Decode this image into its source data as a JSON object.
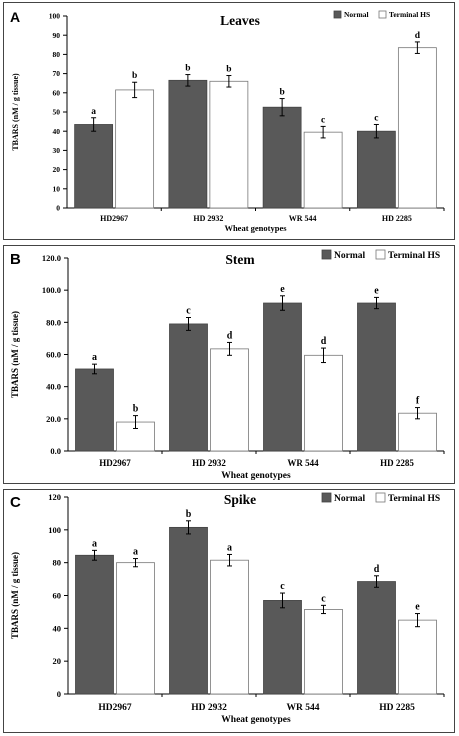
{
  "chart_data": [
    {
      "panel_letter": "A",
      "type": "bar",
      "title": "Leaves",
      "xlabel": "Wheat genotypes",
      "ylabel": "TBARS (nM / g tissue)",
      "categories": [
        "HD2967",
        "HD 2932",
        "WR 544",
        "HD 2285"
      ],
      "ylim": [
        0,
        100
      ],
      "yticks": [
        "0",
        "10",
        "20",
        "30",
        "40",
        "50",
        "60",
        "70",
        "80",
        "90",
        "100"
      ],
      "legend_position": "top-right",
      "series": [
        {
          "name": "Normal",
          "color": "#595959",
          "values": [
            43.5,
            66.5,
            52.5,
            40
          ],
          "errors": [
            3.5,
            3,
            4.5,
            3.5
          ],
          "letters": [
            "a",
            "b",
            "b",
            "c"
          ]
        },
        {
          "name": "Terminal HS",
          "color": "#ffffff",
          "values": [
            61.5,
            66,
            39.5,
            83.5
          ],
          "errors": [
            4,
            3,
            3,
            3
          ],
          "letters": [
            "b",
            "b",
            "c",
            "d"
          ]
        }
      ]
    },
    {
      "panel_letter": "B",
      "type": "bar",
      "title": "Stem",
      "xlabel": "Wheat genotypes",
      "ylabel": "TBARS (nM / g tissue)",
      "categories": [
        "HD2967",
        "HD 2932",
        "WR 544",
        "HD 2285"
      ],
      "ylim": [
        0,
        120
      ],
      "yticks": [
        "0.0",
        "20.0",
        "40.0",
        "60.0",
        "80.0",
        "100.0",
        "120.0"
      ],
      "legend_position": "top-right",
      "series": [
        {
          "name": "Normal",
          "color": "#595959",
          "values": [
            51,
            79,
            92,
            92
          ],
          "errors": [
            3,
            4,
            4.5,
            3.5
          ],
          "letters": [
            "a",
            "c",
            "e",
            "e"
          ]
        },
        {
          "name": "Terminal HS",
          "color": "#ffffff",
          "values": [
            18,
            63.5,
            59.5,
            23.5
          ],
          "errors": [
            4,
            4,
            4.5,
            3.5
          ],
          "letters": [
            "b",
            "d",
            "d",
            "f"
          ]
        }
      ]
    },
    {
      "panel_letter": "C",
      "type": "bar",
      "title": "Spike",
      "xlabel": "Wheat genotypes",
      "ylabel": "TBARS (nM / g tissue)",
      "categories": [
        "HD2967",
        "HD 2932",
        "WR 544",
        "HD 2285"
      ],
      "ylim": [
        0,
        120
      ],
      "yticks": [
        "0",
        "20",
        "40",
        "60",
        "80",
        "100",
        "120"
      ],
      "legend_position": "top-right",
      "series": [
        {
          "name": "Normal",
          "color": "#595959",
          "values": [
            84.5,
            101.5,
            57,
            68.5
          ],
          "errors": [
            3,
            4,
            4.5,
            3.5
          ],
          "letters": [
            "a",
            "b",
            "c",
            "d"
          ]
        },
        {
          "name": "Terminal HS",
          "color": "#ffffff",
          "values": [
            80,
            81.5,
            51.5,
            45
          ],
          "errors": [
            2.5,
            3.5,
            2.5,
            4
          ],
          "letters": [
            "a",
            "a",
            "c",
            "e"
          ]
        }
      ]
    }
  ]
}
